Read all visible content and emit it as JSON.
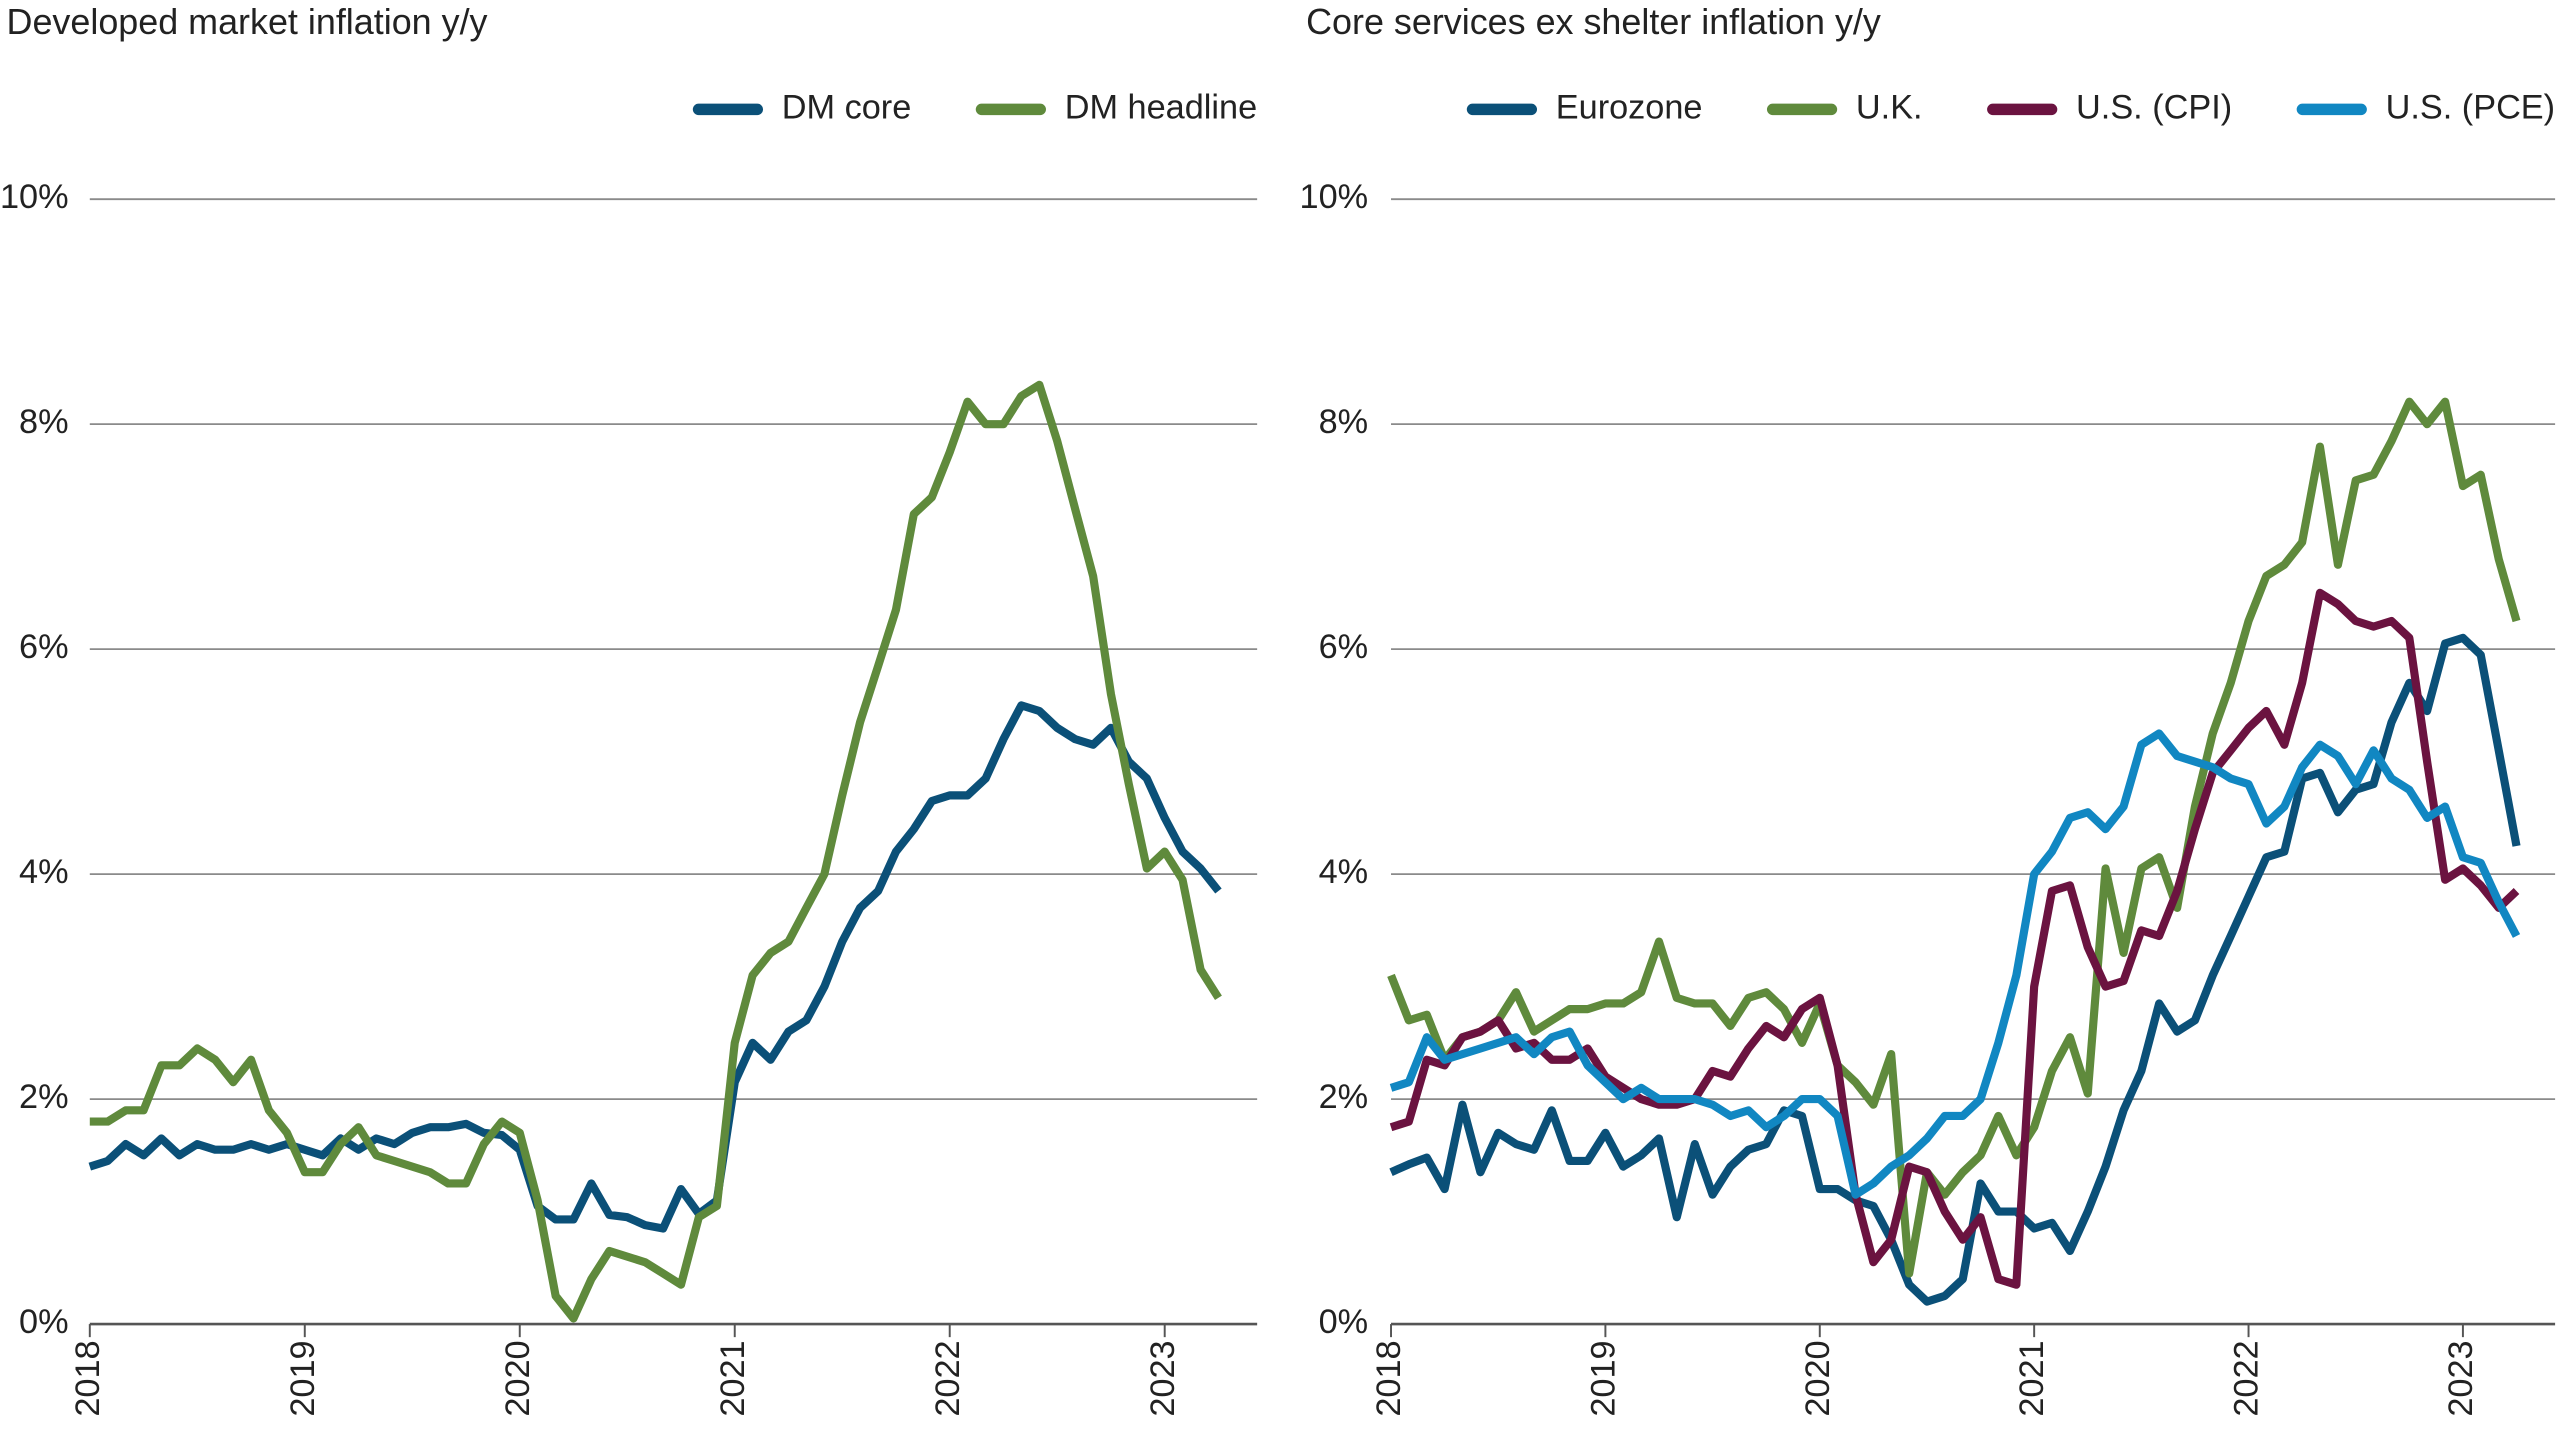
{
  "chart_data": [
    {
      "type": "line",
      "title": "Developed market inflation y/y",
      "grid": true,
      "legend": "top-right",
      "x": [
        2018,
        2018.083,
        2018.167,
        2018.25,
        2018.333,
        2018.417,
        2018.5,
        2018.583,
        2018.667,
        2018.75,
        2018.833,
        2018.917,
        2019,
        2019.083,
        2019.167,
        2019.25,
        2019.333,
        2019.417,
        2019.5,
        2019.583,
        2019.667,
        2019.75,
        2019.833,
        2019.917,
        2020,
        2020.083,
        2020.167,
        2020.25,
        2020.333,
        2020.417,
        2020.5,
        2020.583,
        2020.667,
        2020.75,
        2020.833,
        2020.917,
        2021,
        2021.083,
        2021.167,
        2021.25,
        2021.333,
        2021.417,
        2021.5,
        2021.583,
        2021.667,
        2021.75,
        2021.833,
        2021.917,
        2022,
        2022.083,
        2022.167,
        2022.25,
        2022.333,
        2022.417,
        2022.5,
        2022.583,
        2022.667,
        2022.75,
        2022.833,
        2022.917,
        2023,
        2023.083,
        2023.167,
        2023.25
      ],
      "xlim": [
        2018,
        2023.43
      ],
      "xticks": [
        2018,
        2019,
        2020,
        2021,
        2022,
        2023
      ],
      "ylim": [
        0,
        10
      ],
      "yticks": [
        {
          "value": 0,
          "label": "0%"
        },
        {
          "value": 2,
          "label": "2%"
        },
        {
          "value": 4,
          "label": "4%"
        },
        {
          "value": 6,
          "label": "6%"
        },
        {
          "value": 8,
          "label": "8%"
        },
        {
          "value": 10,
          "label": "10%"
        }
      ],
      "series": [
        {
          "name": "DM core",
          "color": "#0b5078",
          "values": [
            1.4,
            1.45,
            1.6,
            1.5,
            1.65,
            1.5,
            1.6,
            1.55,
            1.55,
            1.6,
            1.55,
            1.6,
            1.55,
            1.5,
            1.65,
            1.55,
            1.65,
            1.6,
            1.7,
            1.75,
            1.75,
            1.78,
            1.7,
            1.68,
            1.55,
            1.05,
            0.93,
            0.93,
            1.25,
            0.97,
            0.95,
            0.88,
            0.85,
            1.2,
            0.98,
            1.1,
            2.15,
            2.5,
            2.35,
            2.6,
            2.7,
            3.0,
            3.4,
            3.7,
            3.85,
            4.2,
            4.4,
            4.65,
            4.7,
            4.7,
            4.85,
            5.2,
            5.5,
            5.45,
            5.3,
            5.2,
            5.15,
            5.3,
            5.0,
            4.85,
            4.5,
            4.2,
            4.05,
            3.85
          ]
        },
        {
          "name": "DM headline",
          "color": "#5f8a3c",
          "values": [
            1.8,
            1.8,
            1.9,
            1.9,
            2.3,
            2.3,
            2.45,
            2.35,
            2.15,
            2.35,
            1.9,
            1.7,
            1.35,
            1.35,
            1.6,
            1.75,
            1.5,
            1.45,
            1.4,
            1.35,
            1.25,
            1.25,
            1.6,
            1.8,
            1.7,
            1.1,
            0.25,
            0.05,
            0.4,
            0.65,
            0.6,
            0.55,
            0.45,
            0.35,
            0.95,
            1.05,
            2.5,
            3.1,
            3.3,
            3.4,
            3.7,
            4.0,
            4.7,
            5.35,
            5.85,
            6.35,
            7.2,
            7.35,
            7.75,
            8.2,
            8.0,
            8.0,
            8.25,
            8.35,
            7.85,
            7.25,
            6.65,
            5.6,
            4.8,
            4.05,
            4.2,
            3.95,
            3.15,
            2.9
          ]
        }
      ]
    },
    {
      "type": "line",
      "title": "Core services ex shelter inflation y/y",
      "grid": true,
      "legend": "top-right",
      "x": [
        2018,
        2018.083,
        2018.167,
        2018.25,
        2018.333,
        2018.417,
        2018.5,
        2018.583,
        2018.667,
        2018.75,
        2018.833,
        2018.917,
        2019,
        2019.083,
        2019.167,
        2019.25,
        2019.333,
        2019.417,
        2019.5,
        2019.583,
        2019.667,
        2019.75,
        2019.833,
        2019.917,
        2020,
        2020.083,
        2020.167,
        2020.25,
        2020.333,
        2020.417,
        2020.5,
        2020.583,
        2020.667,
        2020.75,
        2020.833,
        2020.917,
        2021,
        2021.083,
        2021.167,
        2021.25,
        2021.333,
        2021.417,
        2021.5,
        2021.583,
        2021.667,
        2021.75,
        2021.833,
        2021.917,
        2022,
        2022.083,
        2022.167,
        2022.25,
        2022.333,
        2022.417,
        2022.5,
        2022.583,
        2022.667,
        2022.75,
        2022.833,
        2022.917,
        2023,
        2023.083,
        2023.167,
        2023.25
      ],
      "xlim": [
        2018,
        2023.43
      ],
      "xticks": [
        2018,
        2019,
        2020,
        2021,
        2022,
        2023
      ],
      "ylim": [
        0,
        10
      ],
      "yticks": [
        {
          "value": 0,
          "label": "0%"
        },
        {
          "value": 2,
          "label": "2%"
        },
        {
          "value": 4,
          "label": "4%"
        },
        {
          "value": 6,
          "label": "6%"
        },
        {
          "value": 8,
          "label": "8%"
        },
        {
          "value": 10,
          "label": "10%"
        }
      ],
      "series": [
        {
          "name": "Eurozone",
          "color": "#0b5078",
          "values": [
            1.35,
            1.42,
            1.48,
            1.2,
            1.95,
            1.35,
            1.7,
            1.6,
            1.55,
            1.9,
            1.45,
            1.45,
            1.7,
            1.4,
            1.5,
            1.65,
            0.95,
            1.6,
            1.15,
            1.4,
            1.55,
            1.6,
            1.9,
            1.85,
            1.2,
            1.2,
            1.1,
            1.05,
            0.75,
            0.35,
            0.2,
            0.25,
            0.4,
            1.25,
            1.0,
            1.0,
            0.85,
            0.9,
            0.65,
            1.0,
            1.4,
            1.9,
            2.25,
            2.85,
            2.6,
            2.7,
            3.1,
            3.45,
            3.8,
            4.15,
            4.2,
            4.85,
            4.9,
            4.55,
            4.75,
            4.8,
            5.35,
            5.7,
            5.45,
            6.05,
            6.1,
            5.95,
            5.1,
            4.25
          ]
        },
        {
          "name": "U.K.",
          "color": "#5f8a3c",
          "values": [
            3.1,
            2.7,
            2.75,
            2.35,
            2.55,
            2.6,
            2.7,
            2.95,
            2.6,
            2.7,
            2.8,
            2.8,
            2.85,
            2.85,
            2.95,
            3.4,
            2.9,
            2.85,
            2.85,
            2.65,
            2.9,
            2.95,
            2.8,
            2.5,
            2.85,
            2.3,
            2.15,
            1.95,
            2.4,
            0.45,
            1.35,
            1.15,
            1.35,
            1.5,
            1.85,
            1.5,
            1.75,
            2.25,
            2.55,
            2.05,
            4.05,
            3.3,
            4.05,
            4.15,
            3.7,
            4.6,
            5.25,
            5.7,
            6.25,
            6.65,
            6.75,
            6.95,
            7.8,
            6.75,
            7.5,
            7.55,
            7.85,
            8.2,
            8.0,
            8.2,
            7.45,
            7.55,
            6.8,
            6.25
          ]
        },
        {
          "name": "U.S. (CPI)",
          "color": "#6b1340",
          "values": [
            1.75,
            1.8,
            2.35,
            2.3,
            2.55,
            2.6,
            2.7,
            2.45,
            2.5,
            2.35,
            2.35,
            2.45,
            2.2,
            2.1,
            2.0,
            1.95,
            1.95,
            2.0,
            2.25,
            2.2,
            2.45,
            2.65,
            2.55,
            2.8,
            2.9,
            2.3,
            1.15,
            0.55,
            0.75,
            1.4,
            1.35,
            1.0,
            0.75,
            0.95,
            0.4,
            0.35,
            3.0,
            3.85,
            3.9,
            3.35,
            3.0,
            3.05,
            3.5,
            3.45,
            3.85,
            4.4,
            4.9,
            5.1,
            5.3,
            5.45,
            5.15,
            5.7,
            6.5,
            6.4,
            6.25,
            6.2,
            6.25,
            6.1,
            5.0,
            3.95,
            4.05,
            3.9,
            3.7,
            3.85
          ]
        },
        {
          "name": "U.S. (PCE)",
          "color": "#1187c2",
          "values": [
            2.1,
            2.15,
            2.55,
            2.35,
            2.4,
            2.45,
            2.5,
            2.55,
            2.4,
            2.55,
            2.6,
            2.3,
            2.15,
            2.0,
            2.1,
            2.0,
            2.0,
            2.0,
            1.95,
            1.85,
            1.9,
            1.75,
            1.85,
            2.0,
            2.0,
            1.85,
            1.15,
            1.25,
            1.4,
            1.5,
            1.65,
            1.85,
            1.85,
            2.0,
            2.5,
            3.1,
            4.0,
            4.2,
            4.5,
            4.55,
            4.4,
            4.6,
            5.15,
            5.25,
            5.05,
            5.0,
            4.95,
            4.85,
            4.8,
            4.45,
            4.6,
            4.95,
            5.15,
            5.05,
            4.8,
            5.1,
            4.85,
            4.75,
            4.5,
            4.6,
            4.15,
            4.1,
            3.75,
            3.45
          ]
        }
      ]
    }
  ]
}
